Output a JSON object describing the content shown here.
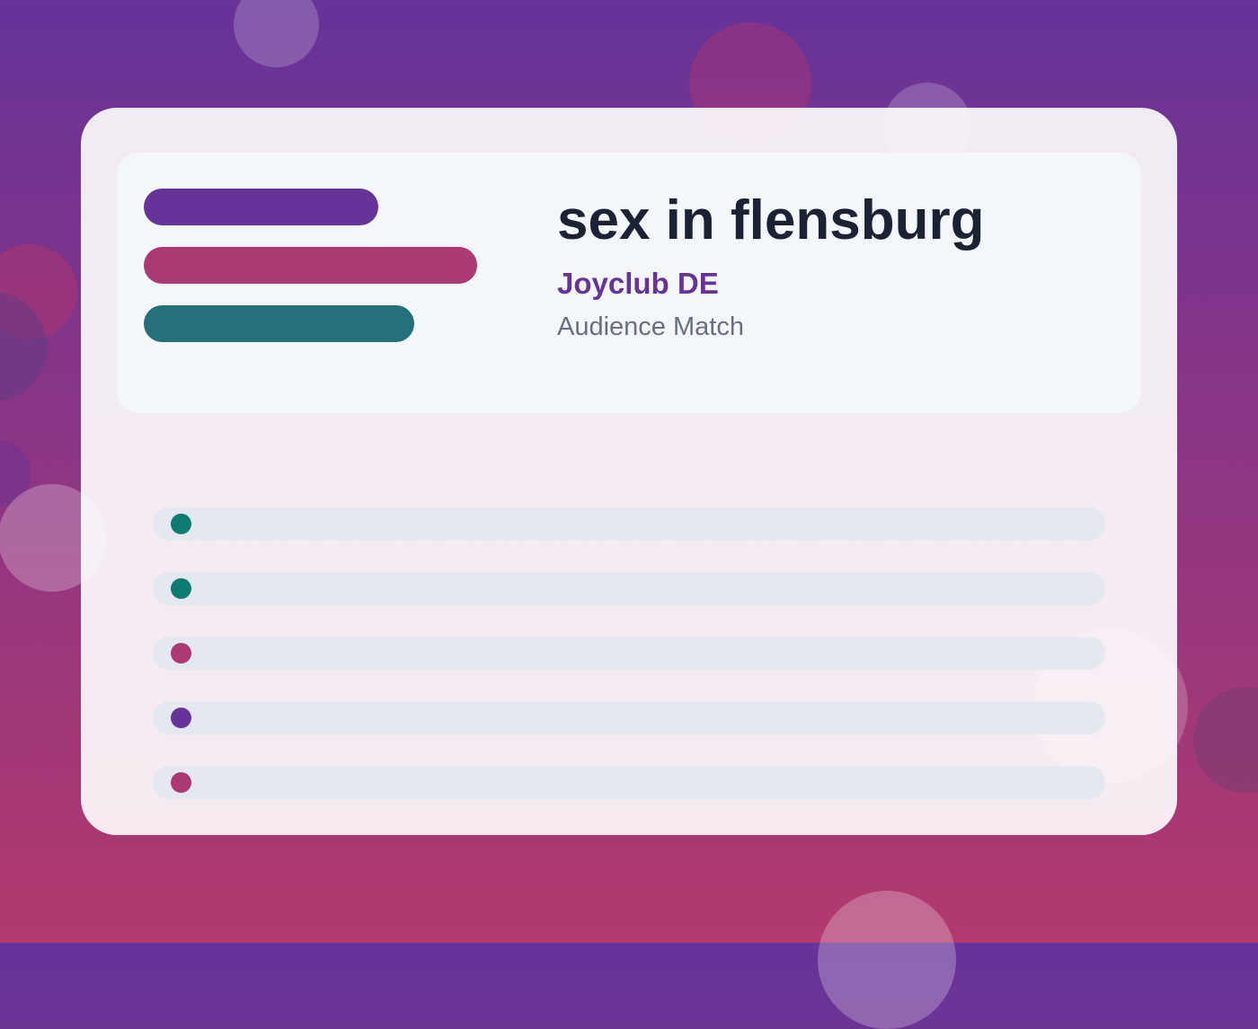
{
  "header": {
    "title": "sex in flensburg",
    "brand": "Joyclub DE",
    "subtitle": "Audience Match"
  },
  "colors": {
    "purple": "#663399",
    "magenta": "#ab3a74",
    "teal": "#25707a",
    "dark_teal": "#0f7a70",
    "title_text": "#1b2233",
    "subtitle_text": "#667080"
  },
  "decor_bars": [
    {
      "name": "purple-bar",
      "color": "#663399"
    },
    {
      "name": "magenta-bar",
      "color": "#ab3a74"
    },
    {
      "name": "teal-bar",
      "color": "#25707a"
    }
  ],
  "rows": [
    {
      "dot_color": "#0f7a70"
    },
    {
      "dot_color": "#0f7a70"
    },
    {
      "dot_color": "#ab3a74"
    },
    {
      "dot_color": "#663399"
    },
    {
      "dot_color": "#ab3a74"
    }
  ]
}
